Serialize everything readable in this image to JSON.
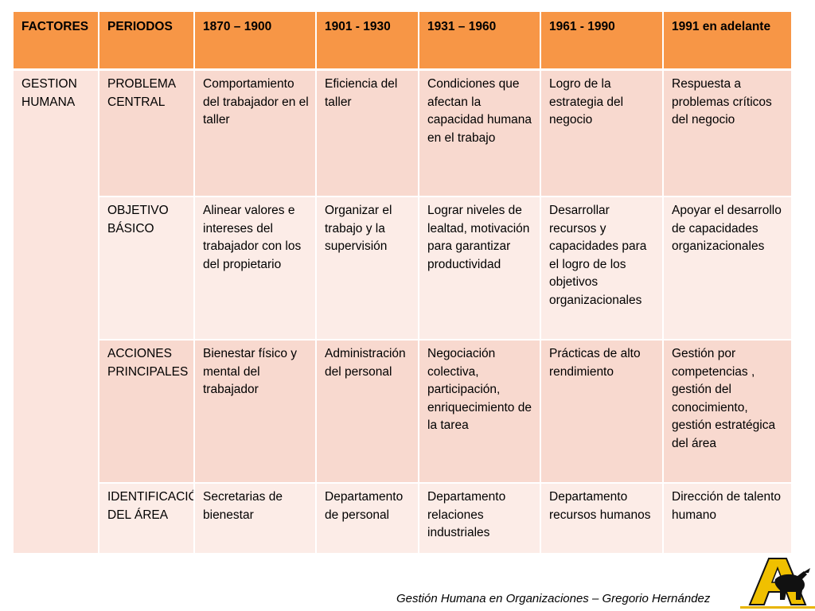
{
  "headers": [
    "FACTORES",
    "PERIODOS",
    "1870 – 1900",
    "1901 - 1930",
    "1931 – 1960",
    "1961 - 1990",
    "1991 en adelante"
  ],
  "factor": "GESTION HUMANA",
  "rows": [
    {
      "period": "PROBLEMA CENTRAL",
      "cells": [
        "Comportamiento del trabajador en el taller",
        "Eficiencia del taller",
        "Condiciones que afectan la capacidad humana en el trabajo",
        "Logro de la estrategia del negocio",
        "Respuesta a problemas críticos del negocio"
      ]
    },
    {
      "period": "OBJETIVO BÁSICO",
      "cells": [
        "Alinear valores e intereses del trabajador con los del propietario",
        "Organizar el trabajo y la supervisión",
        "Lograr niveles de lealtad, motivación para garantizar productividad",
        "Desarrollar recursos y capacidades para el logro de los objetivos organizacionales",
        "Apoyar el desarrollo de capacidades organizacionales"
      ]
    },
    {
      "period": "ACCIONES PRINCIPALES",
      "cells": [
        "Bienestar físico y mental del trabajador",
        "Administración del personal",
        "Negociación colectiva, participación, enriquecimiento de la tarea",
        "Prácticas de alto rendimiento",
        "Gestión por competencias , gestión del conocimiento, gestión estratégica del área"
      ]
    },
    {
      "period": "IDENTIFICACIÓN DEL ÁREA",
      "cells": [
        "Secretarias de bienestar",
        "Departamento de personal",
        "Departamento relaciones industriales",
        "Departamento recursos humanos",
        "Dirección de talento humano"
      ]
    }
  ],
  "footer": "Gestión Humana en Organizaciones – Gregorio Hernández",
  "colors": {
    "header": "#f79646",
    "row_dark": "#f8d9cf",
    "row_light": "#fcece7",
    "logo_gold": "#f0c000",
    "logo_black": "#111111"
  },
  "icons": {
    "logo": "gold-letter-a-with-black-bull-logo"
  }
}
